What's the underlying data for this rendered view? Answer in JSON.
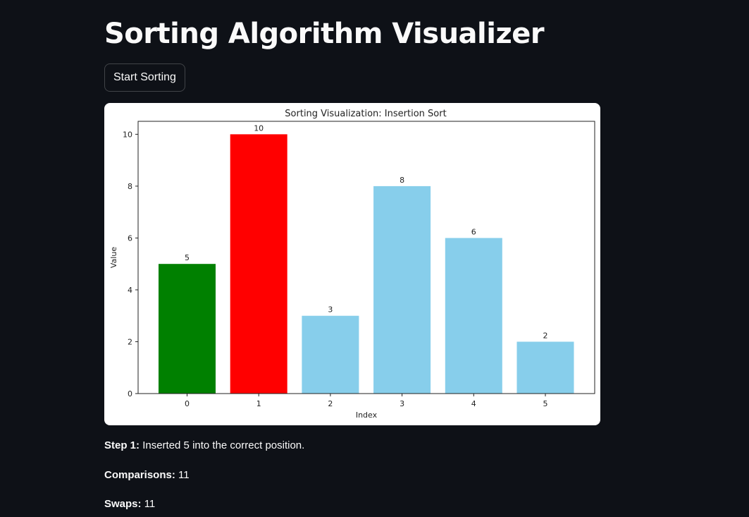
{
  "page": {
    "title": "Sorting Algorithm Visualizer",
    "start_button_label": "Start Sorting"
  },
  "chart_data": {
    "type": "bar",
    "title": "Sorting Visualization: Insertion Sort",
    "xlabel": "Index",
    "ylabel": "Value",
    "categories": [
      "0",
      "1",
      "2",
      "3",
      "4",
      "5"
    ],
    "values": [
      5,
      10,
      3,
      8,
      6,
      2
    ],
    "bar_colors": [
      "#008000",
      "#ff0000",
      "#87ceeb",
      "#87ceeb",
      "#87ceeb",
      "#87ceeb"
    ],
    "ylim": [
      0,
      10.5
    ],
    "yticks": [
      0,
      2,
      4,
      6,
      8,
      10
    ],
    "data_labels": true,
    "grid": false
  },
  "status": {
    "step_label": "Step 1:",
    "step_text": "Inserted 5 into the correct position.",
    "comparisons_label": "Comparisons:",
    "comparisons_value": "11",
    "swaps_label": "Swaps:",
    "swaps_value": "11"
  }
}
